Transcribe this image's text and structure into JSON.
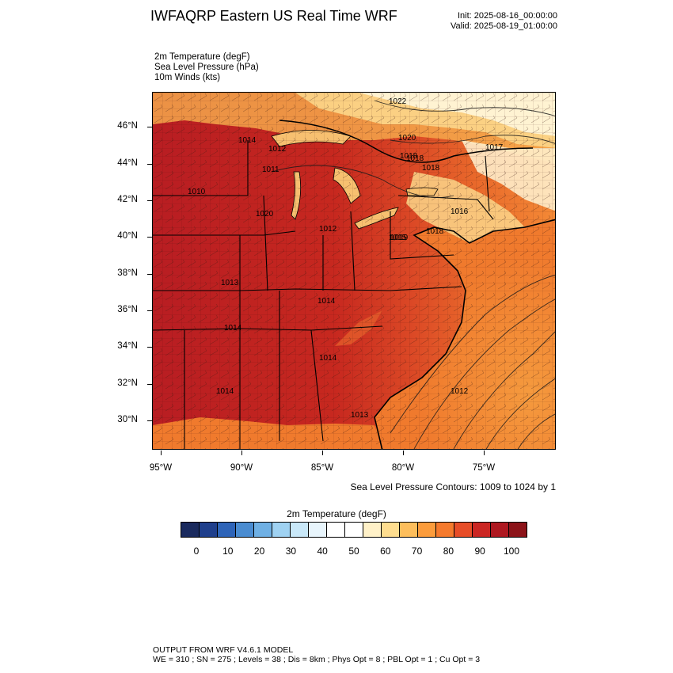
{
  "header": {
    "title": "IWFAQRP Eastern US Real Time WRF",
    "init": "Init: 2025-08-16_00:00:00",
    "valid": "Valid: 2025-08-19_01:00:00"
  },
  "fields": [
    "2m Temperature   (degF)",
    "Sea Level Pressure   (hPa)",
    "10m Winds   (kts)"
  ],
  "map": {
    "latitude_labels": [
      "46°N",
      "44°N",
      "42°N",
      "40°N",
      "38°N",
      "36°N",
      "34°N",
      "32°N",
      "30°N"
    ],
    "longitude_labels": [
      "95°W",
      "90°W",
      "85°W",
      "80°W",
      "75°W"
    ],
    "pressure_labels": [
      "1022",
      "1020",
      "1018",
      "1018",
      "1018",
      "1017",
      "1014",
      "1012",
      "1011",
      "1010",
      "1020",
      "1016",
      "1018",
      "1019",
      "1015",
      "1012",
      "1013",
      "1014",
      "1014",
      "1014",
      "1013",
      "1012",
      "1014"
    ],
    "contour_caption": "Sea Level Pressure Contours: 1009 to 1024 by 1"
  },
  "colorbar": {
    "title": "2m Temperature  (degF)",
    "labels": [
      "0",
      "10",
      "20",
      "30",
      "40",
      "50",
      "60",
      "70",
      "80",
      "90",
      "100"
    ],
    "colors": [
      "#1a2a5e",
      "#1f3f8c",
      "#2e64b8",
      "#4a8cd1",
      "#6fb0e4",
      "#9fd2f2",
      "#c9e8f8",
      "#e8f5fc",
      "#ffffff",
      "#ffffff",
      "#fff1c8",
      "#fedd8f",
      "#fdbe5c",
      "#fb9c3c",
      "#f57a2d",
      "#e74d28",
      "#cb2623",
      "#ae1820",
      "#8c1319"
    ]
  },
  "footer": {
    "line1": "OUTPUT FROM WRF V4.6.1 MODEL",
    "line2": "WE = 310 ; SN = 275 ; Levels = 38 ; Dis = 8km ; Phys Opt = 8 ; PBL Opt = 1 ; Cu Opt = 3"
  }
}
